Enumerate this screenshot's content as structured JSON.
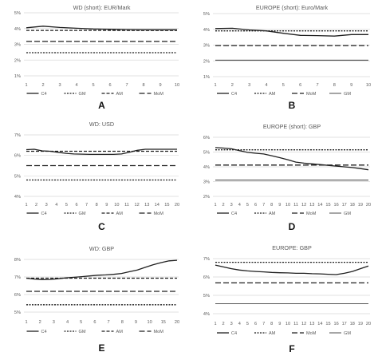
{
  "chart_data": [
    {
      "type": "line",
      "panel_letter": "A",
      "title": "WD (short): EUR/Mark",
      "x": [
        1,
        2,
        3,
        4,
        5,
        6,
        7,
        8,
        9,
        10
      ],
      "x_ticks": [
        "1",
        "2",
        "3",
        "4",
        "5",
        "6",
        "7",
        "8",
        "9",
        "10"
      ],
      "ylim": [
        1,
        5
      ],
      "y_ticks": [
        {
          "value": 1,
          "label": "1%"
        },
        {
          "value": 2,
          "label": "2%"
        },
        {
          "value": 3,
          "label": "3%"
        },
        {
          "value": 4,
          "label": "4%"
        },
        {
          "value": 5,
          "label": "5%"
        }
      ],
      "series": [
        {
          "name": "C4",
          "style": "solid",
          "values": [
            4.05,
            4.15,
            4.07,
            4.02,
            3.97,
            3.95,
            3.93,
            3.92,
            3.92,
            3.92
          ]
        },
        {
          "name": "GM",
          "style": "dotted",
          "values": [
            2.47,
            2.47,
            2.47,
            2.47,
            2.47,
            2.47,
            2.47,
            2.47,
            2.47,
            2.47
          ]
        },
        {
          "name": "AM",
          "style": "dashed",
          "values": [
            3.88,
            3.88,
            3.88,
            3.88,
            3.88,
            3.88,
            3.88,
            3.88,
            3.88,
            3.88
          ]
        },
        {
          "name": "MoM",
          "style": "longdash",
          "values": [
            3.18,
            3.18,
            3.18,
            3.18,
            3.18,
            3.18,
            3.18,
            3.18,
            3.18,
            3.18
          ]
        }
      ]
    },
    {
      "type": "line",
      "panel_letter": "B",
      "title": "EUROPE (short): Euro/Mark",
      "x": [
        1,
        2,
        3,
        4,
        5,
        6,
        7,
        8,
        9,
        10
      ],
      "x_ticks": [
        "1",
        "2",
        "3",
        "4",
        "5",
        "6",
        "7",
        "8",
        "9",
        "10"
      ],
      "ylim": [
        1,
        5
      ],
      "y_ticks": [
        {
          "value": 1,
          "label": "1%"
        },
        {
          "value": 2,
          "label": "2%"
        },
        {
          "value": 3,
          "label": "3%"
        },
        {
          "value": 4,
          "label": "4%"
        },
        {
          "value": 5,
          "label": "5%"
        }
      ],
      "series": [
        {
          "name": "C4",
          "style": "solid",
          "values": [
            4.05,
            4.07,
            3.96,
            3.9,
            3.75,
            3.62,
            3.6,
            3.57,
            3.67,
            3.67
          ]
        },
        {
          "name": "AM",
          "style": "dotted",
          "values": [
            3.9,
            3.9,
            3.9,
            3.9,
            3.9,
            3.9,
            3.9,
            3.9,
            3.9,
            3.9
          ]
        },
        {
          "name": "MoM",
          "style": "longdash",
          "values": [
            2.97,
            2.97,
            2.97,
            2.97,
            2.97,
            2.97,
            2.97,
            2.97,
            2.97,
            2.97
          ]
        },
        {
          "name": "GM",
          "style": "solidthin",
          "values": [
            2.05,
            2.05,
            2.05,
            2.05,
            2.05,
            2.05,
            2.05,
            2.05,
            2.05,
            2.05
          ]
        }
      ]
    },
    {
      "type": "line",
      "panel_letter": "C",
      "title": "WD: USD",
      "x": [
        1,
        2,
        3,
        4,
        5,
        6,
        7,
        8,
        9,
        10,
        11,
        12,
        13,
        14,
        15,
        16,
        17,
        18,
        19,
        20
      ],
      "x_ticks": [
        "1",
        "2",
        "3",
        "4",
        "5",
        "6",
        "7",
        "8",
        "9",
        "10",
        "11",
        "12",
        "13",
        "14",
        "15",
        "20"
      ],
      "ylim": [
        4,
        7
      ],
      "y_ticks": [
        {
          "value": 4,
          "label": "4%"
        },
        {
          "value": 5,
          "label": "5%"
        },
        {
          "value": 6,
          "label": "6%"
        },
        {
          "value": 7,
          "label": "7%"
        }
      ],
      "series": [
        {
          "name": "C4",
          "style": "solid",
          "values": [
            6.28,
            6.3,
            6.22,
            6.2,
            6.15,
            6.1,
            6.07,
            6.06,
            6.05,
            6.05,
            6.05,
            6.05,
            6.07,
            6.15,
            6.25,
            6.3,
            6.3,
            6.3,
            6.3,
            6.3
          ]
        },
        {
          "name": "GM",
          "style": "dotted",
          "values": [
            4.8,
            4.8,
            4.8,
            4.8,
            4.8,
            4.8,
            4.8,
            4.8,
            4.8,
            4.8,
            4.8,
            4.8,
            4.8,
            4.8,
            4.8,
            4.8,
            4.8,
            4.8,
            4.8,
            4.8
          ]
        },
        {
          "name": "AM",
          "style": "dashed",
          "values": [
            6.2,
            6.2,
            6.2,
            6.2,
            6.2,
            6.2,
            6.2,
            6.2,
            6.2,
            6.2,
            6.2,
            6.2,
            6.2,
            6.2,
            6.2,
            6.2,
            6.2,
            6.2,
            6.2,
            6.2
          ]
        },
        {
          "name": "MoM",
          "style": "longdash",
          "values": [
            5.5,
            5.5,
            5.5,
            5.5,
            5.5,
            5.5,
            5.5,
            5.5,
            5.5,
            5.5,
            5.5,
            5.5,
            5.5,
            5.5,
            5.5,
            5.5,
            5.5,
            5.5,
            5.5,
            5.5
          ]
        }
      ]
    },
    {
      "type": "line",
      "panel_letter": "D",
      "title": "EUROPE (short): GBP",
      "x": [
        1,
        2,
        3,
        4,
        5,
        6,
        7,
        8,
        9,
        10,
        11,
        12,
        13,
        14,
        15,
        16,
        17,
        18,
        19,
        20
      ],
      "x_ticks": [
        "1",
        "2",
        "3",
        "4",
        "5",
        "6",
        "7",
        "8",
        "9",
        "10",
        "11",
        "12",
        "13",
        "14",
        "15",
        "16",
        "17",
        "18",
        "19",
        "20"
      ],
      "ylim": [
        2,
        6
      ],
      "y_ticks": [
        {
          "value": 2,
          "label": "2%"
        },
        {
          "value": 3,
          "label": "3%"
        },
        {
          "value": 4,
          "label": "4%"
        },
        {
          "value": 5,
          "label": "5%"
        },
        {
          "value": 6,
          "label": "6%"
        }
      ],
      "series": [
        {
          "name": "C4",
          "style": "solid",
          "values": [
            5.3,
            5.27,
            5.22,
            5.1,
            4.98,
            4.92,
            4.87,
            4.75,
            4.62,
            4.48,
            4.32,
            4.25,
            4.2,
            4.15,
            4.1,
            4.05,
            4.0,
            3.95,
            3.88,
            3.8
          ]
        },
        {
          "name": "AM",
          "style": "dotted",
          "values": [
            5.15,
            5.15,
            5.15,
            5.15,
            5.15,
            5.15,
            5.15,
            5.15,
            5.15,
            5.15,
            5.15,
            5.15,
            5.15,
            5.15,
            5.15,
            5.15,
            5.15,
            5.15,
            5.15,
            5.15
          ]
        },
        {
          "name": "MoM",
          "style": "longdash",
          "values": [
            4.12,
            4.12,
            4.12,
            4.12,
            4.12,
            4.12,
            4.12,
            4.12,
            4.12,
            4.12,
            4.12,
            4.12,
            4.12,
            4.12,
            4.12,
            4.12,
            4.12,
            4.12,
            4.12,
            4.12
          ]
        },
        {
          "name": "GM",
          "style": "solidthin",
          "values": [
            3.1,
            3.1,
            3.1,
            3.1,
            3.1,
            3.1,
            3.1,
            3.1,
            3.1,
            3.1,
            3.1,
            3.1,
            3.1,
            3.1,
            3.1,
            3.1,
            3.1,
            3.1,
            3.1,
            3.1
          ]
        }
      ]
    },
    {
      "type": "line",
      "panel_letter": "E",
      "title": "WD: GBP",
      "x": [
        1,
        2,
        3,
        4,
        5,
        6,
        7,
        8,
        9,
        10,
        11,
        12,
        13,
        14,
        15,
        16,
        17,
        18,
        19,
        20
      ],
      "x_ticks": [
        "1",
        "2",
        "3",
        "4",
        "5",
        "6",
        "7",
        "8",
        "9",
        "10",
        "15",
        "20"
      ],
      "ylim": [
        5,
        8
      ],
      "y_ticks": [
        {
          "value": 5,
          "label": "5%"
        },
        {
          "value": 6,
          "label": "6%"
        },
        {
          "value": 7,
          "label": "7%"
        },
        {
          "value": 8,
          "label": "8%"
        }
      ],
      "series": [
        {
          "name": "C4",
          "style": "solid",
          "values": [
            6.93,
            6.88,
            6.85,
            6.86,
            6.9,
            6.95,
            6.98,
            7.02,
            7.06,
            7.1,
            7.12,
            7.15,
            7.2,
            7.3,
            7.4,
            7.55,
            7.7,
            7.82,
            7.92,
            7.95
          ]
        },
        {
          "name": "GM",
          "style": "dotted",
          "values": [
            5.42,
            5.42,
            5.42,
            5.42,
            5.42,
            5.42,
            5.42,
            5.42,
            5.42,
            5.42,
            5.42,
            5.42,
            5.42,
            5.42,
            5.42,
            5.42,
            5.42,
            5.42,
            5.42,
            5.42
          ]
        },
        {
          "name": "AM",
          "style": "dashed",
          "values": [
            6.93,
            6.93,
            6.93,
            6.93,
            6.93,
            6.93,
            6.93,
            6.93,
            6.93,
            6.93,
            6.93,
            6.93,
            6.93,
            6.93,
            6.93,
            6.93,
            6.93,
            6.93,
            6.93,
            6.93
          ]
        },
        {
          "name": "MoM",
          "style": "longdash",
          "values": [
            6.18,
            6.18,
            6.18,
            6.18,
            6.18,
            6.18,
            6.18,
            6.18,
            6.18,
            6.18,
            6.18,
            6.18,
            6.18,
            6.18,
            6.18,
            6.18,
            6.18,
            6.18,
            6.18,
            6.18
          ]
        }
      ]
    },
    {
      "type": "line",
      "panel_letter": "F",
      "title": "EUROPE: GBP",
      "x": [
        1,
        2,
        3,
        4,
        5,
        6,
        7,
        8,
        9,
        10,
        11,
        12,
        13,
        14,
        15,
        16,
        17,
        18,
        19,
        20
      ],
      "x_ticks": [
        "1",
        "2",
        "3",
        "4",
        "5",
        "6",
        "7",
        "8",
        "9",
        "10",
        "11",
        "12",
        "13",
        "14",
        "15",
        "16",
        "17",
        "18",
        "19",
        "20"
      ],
      "ylim": [
        4,
        7
      ],
      "y_ticks": [
        {
          "value": 4,
          "label": "4%"
        },
        {
          "value": 5,
          "label": "5%"
        },
        {
          "value": 6,
          "label": "6%"
        },
        {
          "value": 7,
          "label": "7%"
        }
      ],
      "series": [
        {
          "name": "C4",
          "style": "solid",
          "values": [
            6.65,
            6.55,
            6.45,
            6.38,
            6.33,
            6.3,
            6.28,
            6.25,
            6.23,
            6.22,
            6.2,
            6.2,
            6.18,
            6.17,
            6.15,
            6.13,
            6.2,
            6.3,
            6.45,
            6.6
          ]
        },
        {
          "name": "AM",
          "style": "dotted",
          "values": [
            6.8,
            6.8,
            6.8,
            6.8,
            6.8,
            6.8,
            6.8,
            6.8,
            6.8,
            6.8,
            6.8,
            6.8,
            6.8,
            6.8,
            6.8,
            6.8,
            6.8,
            6.8,
            6.8,
            6.8
          ]
        },
        {
          "name": "MoM",
          "style": "longdash",
          "values": [
            5.68,
            5.68,
            5.68,
            5.68,
            5.68,
            5.68,
            5.68,
            5.68,
            5.68,
            5.68,
            5.68,
            5.68,
            5.68,
            5.68,
            5.68,
            5.68,
            5.68,
            5.68,
            5.68,
            5.68
          ]
        },
        {
          "name": "GM",
          "style": "solidthin",
          "values": [
            4.55,
            4.55,
            4.55,
            4.55,
            4.55,
            4.55,
            4.55,
            4.55,
            4.55,
            4.55,
            4.55,
            4.55,
            4.55,
            4.55,
            4.55,
            4.55,
            4.55,
            4.55,
            4.55,
            4.55
          ]
        }
      ]
    }
  ],
  "colors": {
    "series": "#1f1f1f",
    "gridline": "#d9d9d9",
    "axis_text": "#595959",
    "title_text": "#595959",
    "panel_letter": "#111111"
  }
}
